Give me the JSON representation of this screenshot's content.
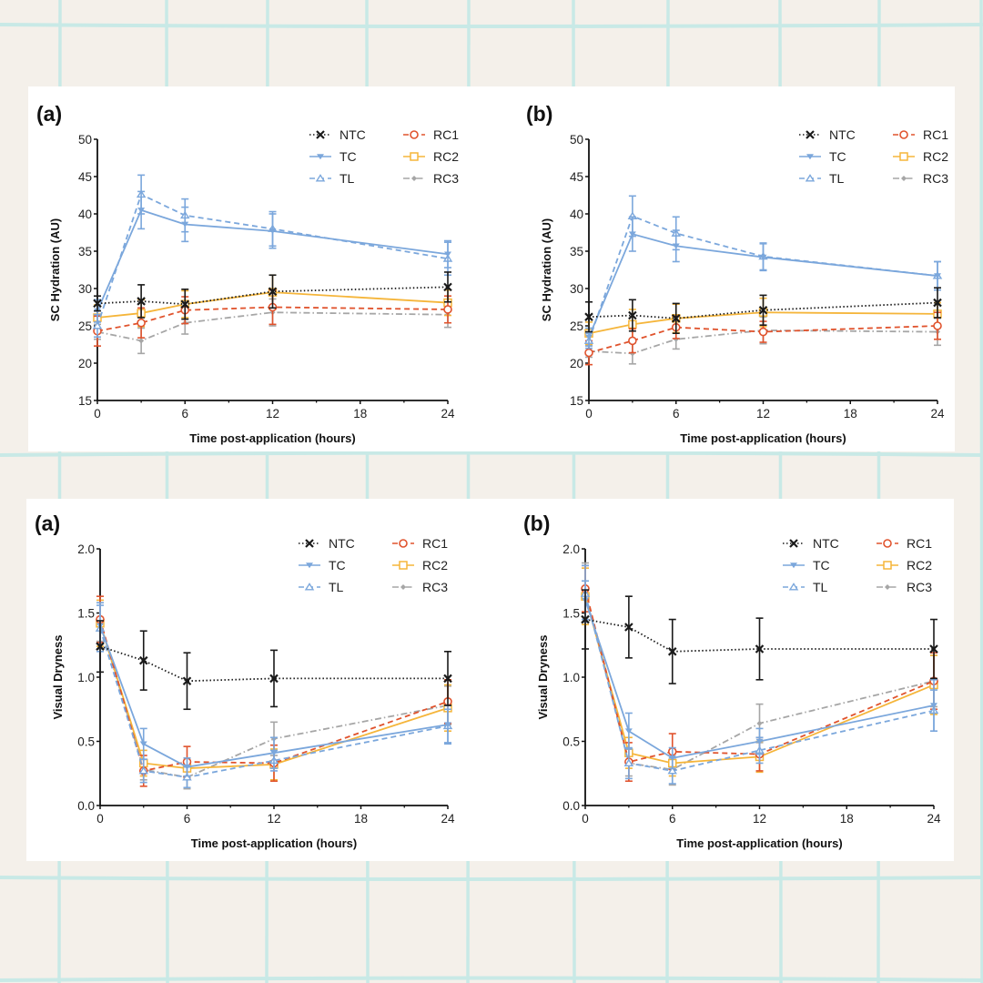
{
  "background": {
    "color": "#f4f0ea",
    "grid_color": "#c8e9e6"
  },
  "series_styles": {
    "NTC": {
      "color": "#1a1a1a",
      "dash": "dot",
      "marker": "x"
    },
    "TC": {
      "color": "#7ba7dc",
      "dash": "solid",
      "marker": "triangle-down"
    },
    "TL": {
      "color": "#7ba7dc",
      "dash": "dash",
      "marker": "triangle-up-open"
    },
    "RC1": {
      "color": "#e0532d",
      "dash": "dash",
      "marker": "circle-open"
    },
    "RC2": {
      "color": "#f5b53a",
      "dash": "solid",
      "marker": "square-open"
    },
    "RC3": {
      "color": "#a6a6a6",
      "dash": "dashdot",
      "marker": "diamond"
    }
  },
  "legend": {
    "columns": [
      [
        "NTC",
        "TC",
        "TL"
      ],
      [
        "RC1",
        "RC2",
        "RC3"
      ]
    ],
    "placement": "top-right"
  },
  "chart_data": [
    {
      "id": "hydration-a",
      "type": "line",
      "panel_label": "(a)",
      "title": "",
      "xlabel": "Time post-application (hours)",
      "ylabel": "SC Hydration (AU)",
      "x": [
        0,
        3,
        6,
        12,
        24
      ],
      "xlim": [
        0,
        24
      ],
      "xticks": [
        0,
        6,
        12,
        18,
        24
      ],
      "xminor": [
        3,
        9,
        15,
        21
      ],
      "ylim": [
        15,
        50
      ],
      "yticks": [
        15,
        20,
        25,
        30,
        35,
        40,
        45,
        50
      ],
      "ytick_labels": [
        "15",
        "20",
        "25",
        "30",
        "35",
        "40",
        "45",
        "50"
      ],
      "grid": false,
      "series": [
        {
          "name": "NTC",
          "values": [
            28.0,
            28.3,
            27.9,
            29.6,
            30.2
          ],
          "errors": [
            1.0,
            2.2,
            2.0,
            2.2,
            2.0
          ]
        },
        {
          "name": "TC",
          "values": [
            27.0,
            40.5,
            38.6,
            37.7,
            34.6
          ],
          "errors": [
            1.5,
            2.5,
            2.3,
            2.3,
            1.8
          ]
        },
        {
          "name": "TL",
          "values": [
            25.0,
            42.6,
            39.8,
            38.0,
            34.0
          ],
          "errors": [
            1.5,
            2.6,
            2.2,
            2.3,
            2.2
          ]
        },
        {
          "name": "RC1",
          "values": [
            24.3,
            25.4,
            27.1,
            27.5,
            27.2
          ],
          "errors": [
            2.0,
            2.0,
            1.8,
            2.3,
            1.8
          ]
        },
        {
          "name": "RC2",
          "values": [
            26.1,
            26.7,
            27.9,
            29.5,
            28.1
          ],
          "errors": [
            1.7,
            1.8,
            1.8,
            2.3,
            1.7
          ]
        },
        {
          "name": "RC3",
          "values": [
            24.2,
            23.0,
            25.4,
            26.8,
            26.5
          ],
          "errors": [
            1.0,
            1.7,
            1.5,
            1.8,
            1.7
          ]
        }
      ]
    },
    {
      "id": "hydration-b",
      "type": "line",
      "panel_label": "(b)",
      "title": "",
      "xlabel": "Time post-application (hours)",
      "ylabel": "SC Hydration (AU)",
      "x": [
        0,
        3,
        6,
        12,
        24
      ],
      "xlim": [
        0,
        24
      ],
      "xticks": [
        0,
        6,
        12,
        18,
        24
      ],
      "xminor": [
        3,
        9,
        15,
        21
      ],
      "ylim": [
        15,
        50
      ],
      "yticks": [
        15,
        20,
        25,
        30,
        35,
        40,
        45,
        50
      ],
      "ytick_labels": [
        "15",
        "20",
        "25",
        "30",
        "35",
        "40",
        "45",
        "50"
      ],
      "grid": false,
      "series": [
        {
          "name": "NTC",
          "values": [
            26.2,
            26.4,
            26.0,
            27.1,
            28.1
          ],
          "errors": [
            2.0,
            2.1,
            2.0,
            2.0,
            2.0
          ]
        },
        {
          "name": "TC",
          "values": [
            23.5,
            37.3,
            35.7,
            34.2,
            31.7
          ],
          "errors": [
            1.2,
            2.3,
            2.1,
            1.8,
            1.9
          ]
        },
        {
          "name": "TL",
          "values": [
            23.0,
            39.7,
            37.4,
            34.3,
            31.7
          ],
          "errors": [
            1.0,
            2.7,
            2.2,
            1.8,
            1.9
          ]
        },
        {
          "name": "RC1",
          "values": [
            21.4,
            23.0,
            24.8,
            24.2,
            25.0
          ],
          "errors": [
            1.6,
            1.6,
            1.5,
            1.4,
            1.8
          ]
        },
        {
          "name": "RC2",
          "values": [
            24.0,
            25.2,
            26.0,
            26.8,
            26.6
          ],
          "errors": [
            1.5,
            2.0,
            1.9,
            1.9,
            1.5
          ]
        },
        {
          "name": "RC3",
          "values": [
            21.6,
            21.3,
            23.2,
            24.4,
            24.2
          ],
          "errors": [
            0.8,
            1.4,
            1.3,
            1.8,
            1.8
          ]
        }
      ]
    },
    {
      "id": "dryness-a",
      "type": "line",
      "panel_label": "(a)",
      "title": "",
      "xlabel": "Time post-application (hours)",
      "ylabel": "Visual Dryness",
      "x": [
        0,
        3,
        6,
        12,
        24
      ],
      "xlim": [
        0,
        24
      ],
      "xticks": [
        0,
        6,
        12,
        18,
        24
      ],
      "xminor": [
        3,
        9,
        15,
        21
      ],
      "ylim": [
        0,
        2
      ],
      "yticks": [
        0,
        0.5,
        1.0,
        1.5,
        2.0
      ],
      "ytick_labels": [
        "0.0",
        "0.5",
        "1.0",
        "1.5",
        "2.0"
      ],
      "grid": false,
      "series": [
        {
          "name": "NTC",
          "values": [
            1.24,
            1.13,
            0.97,
            0.99,
            0.99
          ],
          "errors": [
            0.2,
            0.23,
            0.22,
            0.22,
            0.21
          ]
        },
        {
          "name": "TC",
          "values": [
            1.4,
            0.48,
            0.3,
            0.41,
            0.63
          ],
          "errors": [
            0.18,
            0.12,
            0.07,
            0.12,
            0.15
          ]
        },
        {
          "name": "TL",
          "values": [
            1.38,
            0.27,
            0.22,
            0.35,
            0.62
          ],
          "errors": [
            0.18,
            0.09,
            0.08,
            0.08,
            0.13
          ]
        },
        {
          "name": "RC1",
          "values": [
            1.45,
            0.27,
            0.34,
            0.33,
            0.81
          ],
          "errors": [
            0.18,
            0.12,
            0.12,
            0.14,
            0.17
          ]
        },
        {
          "name": "RC2",
          "values": [
            1.42,
            0.33,
            0.29,
            0.32,
            0.76
          ],
          "errors": [
            0.18,
            0.1,
            0.08,
            0.12,
            0.18
          ]
        },
        {
          "name": "RC3",
          "values": [
            1.43,
            0.28,
            0.22,
            0.52,
            0.78
          ],
          "errors": [
            0.15,
            0.08,
            0.09,
            0.13,
            0.15
          ]
        }
      ]
    },
    {
      "id": "dryness-b",
      "type": "line",
      "panel_label": "(b)",
      "title": "",
      "xlabel": "Time post-application (hours)",
      "ylabel": "Visual Dryness",
      "x": [
        0,
        3,
        6,
        12,
        24
      ],
      "xlim": [
        0,
        24
      ],
      "xticks": [
        0,
        6,
        12,
        18,
        24
      ],
      "xminor": [
        3,
        9,
        15,
        21
      ],
      "ylim": [
        0,
        2
      ],
      "yticks": [
        0,
        0.5,
        1.0,
        1.5,
        2.0
      ],
      "ytick_labels": [
        "0.0",
        "0.5",
        "1.0",
        "1.5",
        "2.0"
      ],
      "grid": false,
      "series": [
        {
          "name": "NTC",
          "values": [
            1.45,
            1.39,
            1.2,
            1.22,
            1.22
          ],
          "errors": [
            0.23,
            0.24,
            0.25,
            0.24,
            0.23
          ]
        },
        {
          "name": "TC",
          "values": [
            1.6,
            0.58,
            0.37,
            0.5,
            0.78
          ],
          "errors": [
            0.15,
            0.14,
            0.08,
            0.1,
            0.2
          ]
        },
        {
          "name": "TL",
          "values": [
            1.65,
            0.33,
            0.27,
            0.43,
            0.74
          ],
          "errors": [
            0.22,
            0.12,
            0.1,
            0.1,
            0.16
          ]
        },
        {
          "name": "RC1",
          "values": [
            1.69,
            0.34,
            0.42,
            0.4,
            0.97
          ],
          "errors": [
            0.18,
            0.15,
            0.14,
            0.13,
            0.22
          ]
        },
        {
          "name": "RC2",
          "values": [
            1.63,
            0.41,
            0.33,
            0.38,
            0.94
          ],
          "errors": [
            0.22,
            0.12,
            0.1,
            0.12,
            0.23
          ]
        },
        {
          "name": "RC3",
          "values": [
            1.66,
            0.33,
            0.28,
            0.64,
            0.97
          ],
          "errors": [
            0.23,
            0.1,
            0.12,
            0.15,
            0.2
          ]
        }
      ]
    }
  ]
}
